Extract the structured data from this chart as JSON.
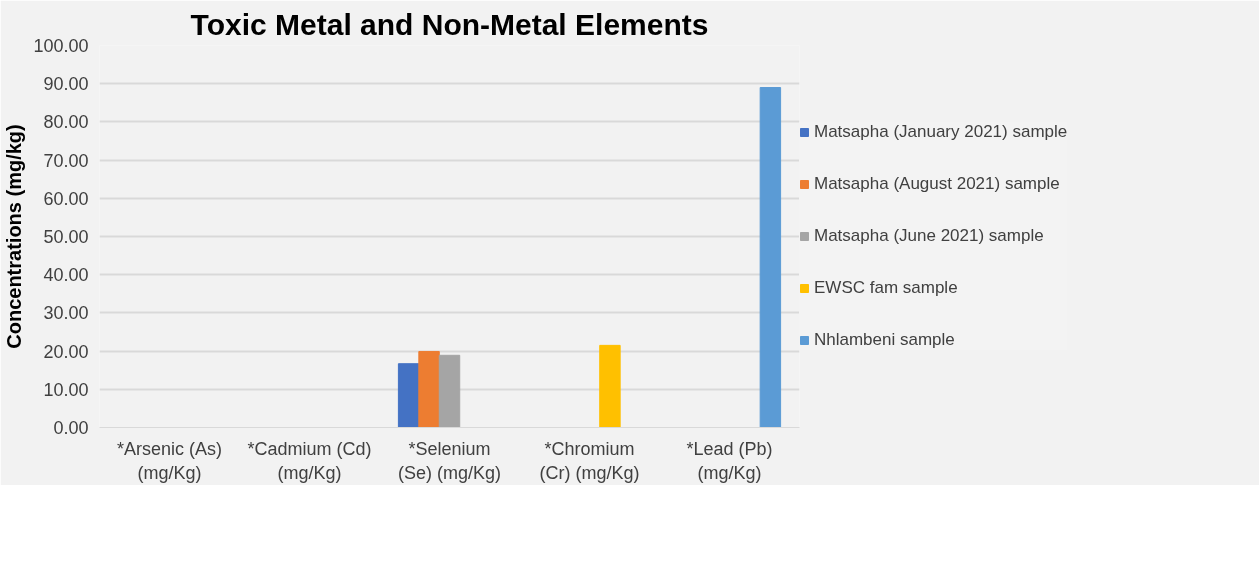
{
  "chart_data": {
    "type": "bar",
    "title": "Toxic Metal and Non-Metal Elements",
    "ylabel": "Concentrations (mg/kg)",
    "categories": [
      "*Arsenic (As) (mg/Kg)",
      "*Cadmium (Cd) (mg/Kg)",
      "*Selenium (Se) (mg/Kg)",
      "*Chromium (Cr) (mg/Kg)",
      "*Lead (Pb) (mg/Kg)"
    ],
    "series": [
      {
        "name": "Matsapha (January 2021) sample",
        "color": "#4472c4",
        "values": [
          null,
          null,
          16.7,
          null,
          null
        ]
      },
      {
        "name": "Matsapha (August 2021) sample",
        "color": "#ed7d31",
        "values": [
          null,
          null,
          19.9,
          null,
          null
        ]
      },
      {
        "name": "Matsapha (June 2021) sample",
        "color": "#a5a5a5",
        "values": [
          null,
          null,
          18.9,
          null,
          null
        ]
      },
      {
        "name": "EWSC fam sample",
        "color": "#ffc000",
        "values": [
          null,
          null,
          null,
          21.5,
          null
        ]
      },
      {
        "name": "Nhlambeni sample",
        "color": "#5b9bd5",
        "values": [
          null,
          null,
          null,
          null,
          89.0
        ]
      }
    ],
    "ylim": [
      0,
      100
    ],
    "yticks": [
      {
        "value": 0,
        "label": "0.00"
      },
      {
        "value": 10,
        "label": "10.00"
      },
      {
        "value": 20,
        "label": "20.00"
      },
      {
        "value": 30,
        "label": "30.00"
      },
      {
        "value": 40,
        "label": "40.00"
      },
      {
        "value": 50,
        "label": "50.00"
      },
      {
        "value": 60,
        "label": "60.00"
      },
      {
        "value": 70,
        "label": "70.00"
      },
      {
        "value": 80,
        "label": "80.00"
      },
      {
        "value": 90,
        "label": "90.00"
      },
      {
        "value": 100,
        "label": "100.00"
      }
    ],
    "grid": "y",
    "legend": "right"
  }
}
